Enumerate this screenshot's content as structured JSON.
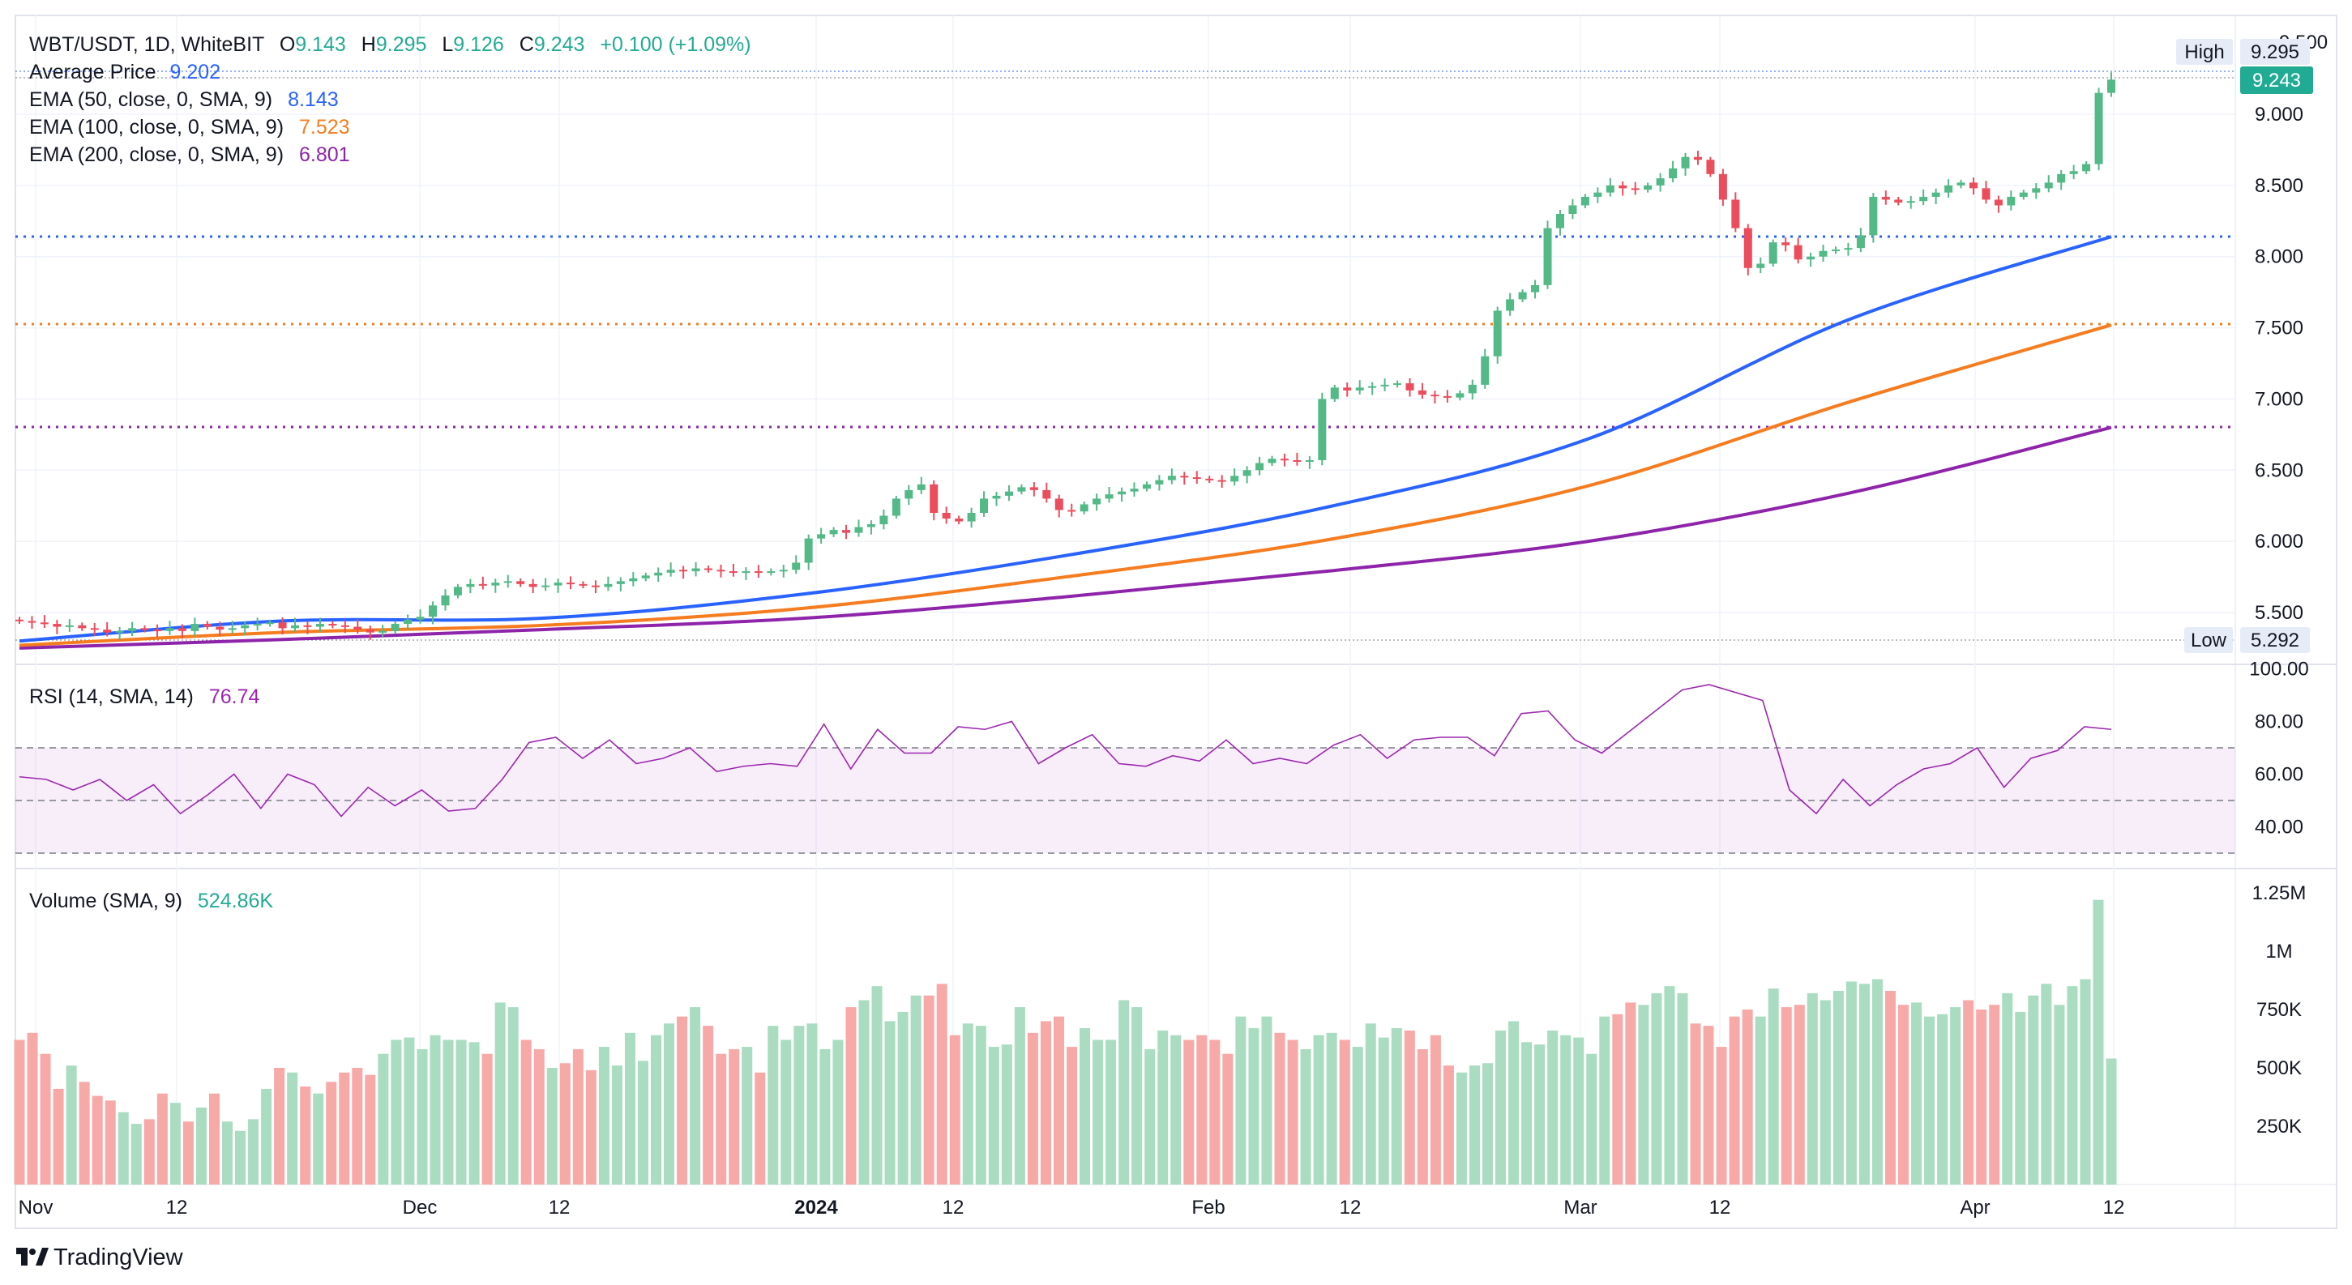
{
  "header": {
    "symbol": "WBT/USDT, 1D, WhiteBIT",
    "open_label": "O",
    "open": "9.143",
    "high_label": "H",
    "high": "9.295",
    "low_label": "L",
    "low": "9.126",
    "close_label": "C",
    "close": "9.243",
    "change": "+0.100 (+1.09%)",
    "avg_price_label": "Average Price",
    "avg_price": "9.202",
    "ema50_label": "EMA (50, close, 0, SMA, 9)",
    "ema50": "8.143",
    "ema100_label": "EMA (100, close, 0, SMA, 9)",
    "ema100": "7.523",
    "ema200_label": "EMA (200, close, 0, SMA, 9)",
    "ema200": "6.801"
  },
  "price_axis": {
    "ticks": [
      "9.000",
      "8.500",
      "8.000",
      "7.500",
      "7.000",
      "6.500",
      "6.000",
      "5.500"
    ],
    "top_cut": "9.500",
    "high_label": "High",
    "high_value": "9.295",
    "last_value": "9.243",
    "low_label": "Low",
    "low_value": "5.292"
  },
  "rsi": {
    "label": "RSI (14, SMA, 14)",
    "value": "76.74",
    "ticks": [
      "100.00",
      "80.00",
      "60.00",
      "40.00"
    ]
  },
  "volume": {
    "label": "Volume (SMA, 9)",
    "value": "524.86K",
    "ticks": [
      "1.25M",
      "1M",
      "750K",
      "500K",
      "250K"
    ]
  },
  "time_axis": {
    "labels": [
      "Nov",
      "12",
      "Dec",
      "12",
      "2024",
      "12",
      "Feb",
      "12",
      "Mar",
      "12",
      "Apr",
      "12"
    ]
  },
  "branding": {
    "name": "TradingView"
  },
  "colors": {
    "up": "#22ab94",
    "down": "#f23645",
    "candle_up": "#53b987",
    "candle_down": "#eb4d5c",
    "vol_up": "#a9dcc0",
    "vol_down": "#f7a9a7",
    "ema50": "#2962ff",
    "ema100": "#f57c1f",
    "ema200": "#8e24aa",
    "avg": "#2962ff",
    "rsi": "#9c27b0"
  },
  "chart_data": {
    "type": "candlestick",
    "title": "WBT/USDT, 1D, WhiteBIT",
    "x_range": [
      "2023-11-01",
      "2024-04-10"
    ],
    "ylim": [
      5.2,
      9.5
    ],
    "series": [
      {
        "name": "WBT/USDT price (close)",
        "values": [
          5.44,
          5.43,
          5.42,
          5.4,
          5.41,
          5.39,
          5.38,
          5.36,
          5.37,
          5.39,
          5.38,
          5.37,
          5.39,
          5.37,
          5.42,
          5.4,
          5.38,
          5.39,
          5.41,
          5.42,
          5.43,
          5.39,
          5.41,
          5.4,
          5.42,
          5.41,
          5.4,
          5.38,
          5.36,
          5.37,
          5.42,
          5.45,
          5.47,
          5.55,
          5.62,
          5.68,
          5.7,
          5.69,
          5.71,
          5.72,
          5.7,
          5.68,
          5.69,
          5.71,
          5.7,
          5.69,
          5.68,
          5.7,
          5.72,
          5.74,
          5.76,
          5.78,
          5.8,
          5.79,
          5.81,
          5.8,
          5.79,
          5.78,
          5.79,
          5.78,
          5.79,
          5.8,
          5.85,
          6.02,
          6.05,
          6.08,
          6.06,
          6.1,
          6.12,
          6.18,
          6.3,
          6.36,
          6.4,
          6.2,
          6.16,
          6.14,
          6.2,
          6.3,
          6.32,
          6.35,
          6.38,
          6.36,
          6.3,
          6.22,
          6.21,
          6.26,
          6.3,
          6.33,
          6.35,
          6.37,
          6.4,
          6.43,
          6.46,
          6.45,
          6.44,
          6.43,
          6.42,
          6.46,
          6.5,
          6.55,
          6.58,
          6.57,
          6.56,
          6.57,
          7.0,
          7.08,
          7.06,
          7.08,
          7.09,
          7.1,
          7.11,
          7.06,
          7.03,
          7.02,
          7.01,
          7.04,
          7.1,
          7.3,
          7.62,
          7.7,
          7.75,
          7.8,
          8.2,
          8.3,
          8.36,
          8.42,
          8.45,
          8.5,
          8.48,
          8.47,
          8.5,
          8.55,
          8.62,
          8.7,
          8.68,
          8.58,
          8.4,
          8.2,
          7.92,
          7.95,
          8.1,
          8.08,
          7.98,
          8.0,
          8.04,
          8.05,
          8.06,
          8.15,
          8.42,
          8.4,
          8.38,
          8.39,
          8.42,
          8.45,
          8.5,
          8.52,
          8.48,
          8.4,
          8.36,
          8.42,
          8.45,
          8.48,
          8.52,
          8.58,
          8.6,
          8.65,
          9.15,
          9.243
        ]
      },
      {
        "name": "EMA 50",
        "values": [
          5.3,
          5.44,
          5.46,
          5.63,
          5.9,
          6.24,
          6.72,
          7.56,
          8.14
        ]
      },
      {
        "name": "EMA 100",
        "values": [
          5.27,
          5.36,
          5.41,
          5.53,
          5.75,
          6.01,
          6.39,
          6.98,
          7.52
        ]
      },
      {
        "name": "EMA 200",
        "values": [
          5.25,
          5.31,
          5.38,
          5.46,
          5.61,
          5.79,
          6.0,
          6.34,
          6.8
        ]
      },
      {
        "name": "RSI",
        "values": [
          59,
          58,
          54,
          58,
          50,
          56,
          45,
          52,
          60,
          47,
          60,
          56,
          44,
          55,
          48,
          54,
          46,
          47,
          58,
          72,
          74,
          66,
          73,
          64,
          66,
          70,
          61,
          63,
          64,
          63,
          79,
          62,
          77,
          68,
          68,
          78,
          77,
          80,
          64,
          70,
          75,
          64,
          63,
          67,
          65,
          73,
          64,
          66,
          64,
          71,
          75,
          66,
          73,
          74,
          74,
          67,
          83,
          84,
          73,
          68,
          76,
          84,
          92,
          94,
          91,
          88,
          54,
          45,
          58,
          48,
          56,
          62,
          64,
          70,
          55,
          66,
          69,
          78,
          77
        ]
      },
      {
        "name": "Volume",
        "values": [
          620,
          650,
          560,
          410,
          510,
          440,
          380,
          360,
          310,
          260,
          280,
          390,
          350,
          270,
          330,
          390,
          270,
          230,
          280,
          410,
          500,
          480,
          420,
          390,
          440,
          480,
          500,
          470,
          560,
          620,
          630,
          580,
          640,
          620,
          620,
          610,
          560,
          780,
          760,
          620,
          580,
          500,
          520,
          580,
          490,
          590,
          510,
          650,
          530,
          640,
          690,
          720,
          760,
          680,
          560,
          580,
          590,
          480,
          680,
          620,
          680,
          690,
          580,
          620,
          760,
          790,
          850,
          700,
          740,
          810,
          810,
          860,
          640,
          690,
          680,
          590,
          600,
          760,
          650,
          700,
          720,
          590,
          670,
          620,
          620,
          790,
          760,
          580,
          660,
          640,
          620,
          640,
          620,
          560,
          720,
          670,
          720,
          650,
          620,
          580,
          640,
          650,
          620,
          590,
          690,
          630,
          670,
          660,
          580,
          640,
          510,
          480,
          510,
          520,
          660,
          700,
          610,
          600,
          660,
          640,
          630,
          560,
          720,
          730,
          780,
          770,
          820,
          850,
          820,
          690,
          680,
          590,
          720,
          750,
          720,
          840,
          760,
          770,
          820,
          790,
          830,
          870,
          860,
          880,
          830,
          770,
          780,
          720,
          730,
          760,
          790,
          750,
          770,
          820,
          740,
          810,
          860,
          770,
          850,
          880,
          1220,
          540
        ]
      }
    ],
    "ylabel": "",
    "xlabel": "",
    "grid": true,
    "legend": "top-left"
  }
}
